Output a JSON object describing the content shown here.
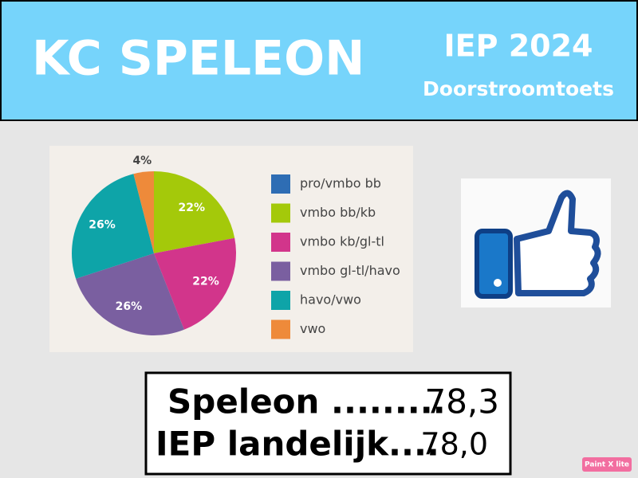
{
  "header": {
    "title": "KC SPELEON",
    "subtitle": "IEP 2024",
    "caption": "Doorstroomtoets"
  },
  "chart_data": {
    "type": "pie",
    "categories": [
      "pro/vmbo bb",
      "vmbo bb/kb",
      "vmbo kb/gl-tl",
      "vmbo gl-tl/havo",
      "havo/vwo",
      "vwo"
    ],
    "values": [
      0,
      22,
      22,
      26,
      26,
      4
    ],
    "value_labels": [
      null,
      "22%",
      "22%",
      "26%",
      "26%",
      "4%"
    ],
    "colors": [
      "#2e6db4",
      "#a4c90a",
      "#d2358b",
      "#7a5fa0",
      "#0ea4a8",
      "#ee8a3a"
    ]
  },
  "scores": {
    "rows": [
      [
        "Speleon  .........",
        "78,3"
      ],
      [
        "IEP landelijk....",
        "78,0"
      ]
    ]
  },
  "watermark": "Paint X lite"
}
